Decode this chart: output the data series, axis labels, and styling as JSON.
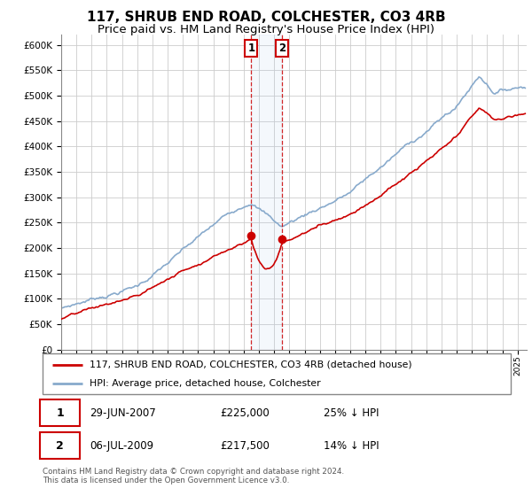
{
  "title": "117, SHRUB END ROAD, COLCHESTER, CO3 4RB",
  "subtitle": "Price paid vs. HM Land Registry's House Price Index (HPI)",
  "ylim": [
    0,
    620000
  ],
  "yticks": [
    0,
    50000,
    100000,
    150000,
    200000,
    250000,
    300000,
    350000,
    400000,
    450000,
    500000,
    550000,
    600000
  ],
  "legend_line1": "117, SHRUB END ROAD, COLCHESTER, CO3 4RB (detached house)",
  "legend_line2": "HPI: Average price, detached house, Colchester",
  "sale1_date": "29-JUN-2007",
  "sale1_price": "£225,000",
  "sale1_note": "25% ↓ HPI",
  "sale1_year": 2007.49,
  "sale1_value": 225000,
  "sale2_date": "06-JUL-2009",
  "sale2_price": "£217,500",
  "sale2_note": "14% ↓ HPI",
  "sale2_year": 2009.51,
  "sale2_value": 217500,
  "red_line_color": "#cc0000",
  "blue_line_color": "#88aacc",
  "background_color": "#ffffff",
  "grid_color": "#cccccc",
  "footer": "Contains HM Land Registry data © Crown copyright and database right 2024.\nThis data is licensed under the Open Government Licence v3.0.",
  "title_fontsize": 11,
  "subtitle_fontsize": 9.5
}
